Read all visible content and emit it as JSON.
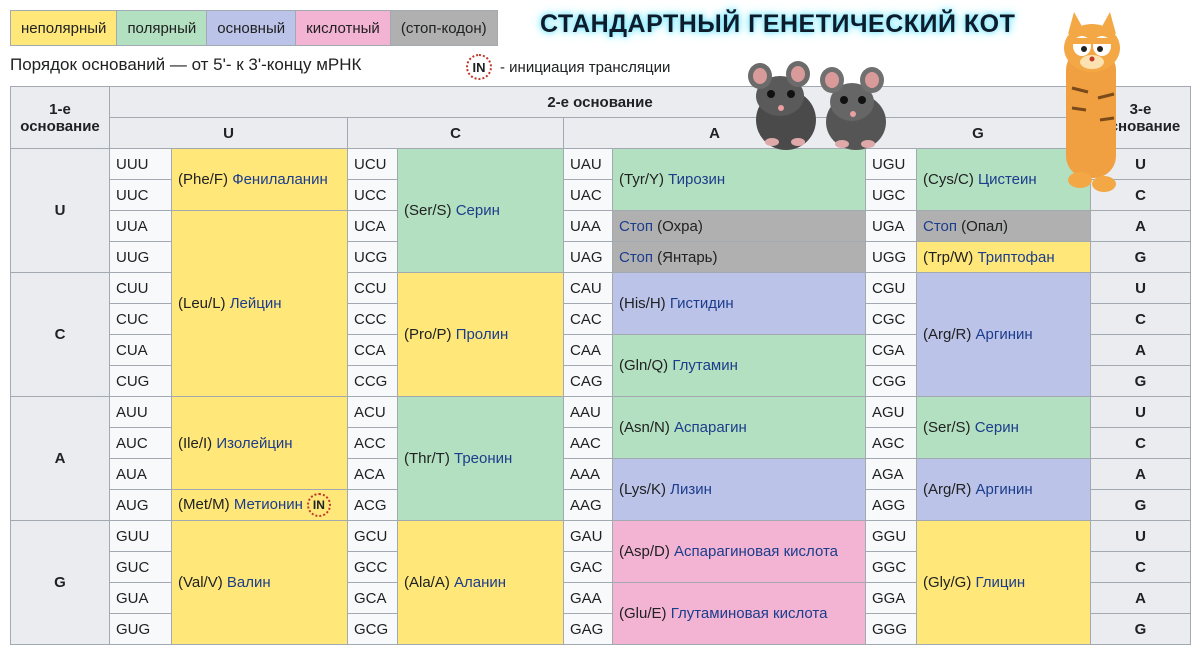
{
  "legend": {
    "items": [
      {
        "label": "неполярный",
        "color": "#ffe77a"
      },
      {
        "label": "полярный",
        "color": "#b3e0c0"
      },
      {
        "label": "основный",
        "color": "#bcc3e8"
      },
      {
        "label": "кислотный",
        "color": "#f3b4d3"
      },
      {
        "label": "(стоп-кодон)",
        "color": "#b0b0b0"
      }
    ]
  },
  "title": "СТАНДАРТНЫЙ ГЕНЕТИЧЕСКИЙ КОТ",
  "subtitle": "Порядок оснований — от 5'- к 3'-концу мРНК",
  "initiation": {
    "mark": "IN",
    "text": "- инициация трансляции"
  },
  "headers": {
    "first_base": "1-е основание",
    "second_base": "2-е основание",
    "third_base": "3-е основание",
    "second_letters": [
      "U",
      "C",
      "A",
      "G"
    ]
  },
  "rows": [
    {
      "first": "U",
      "thirds": [
        "U",
        "C",
        "A",
        "G"
      ],
      "codons": [
        [
          "UUU",
          "UCU",
          "UAU",
          "UGU"
        ],
        [
          "UUC",
          "UCC",
          "UAC",
          "UGC"
        ],
        [
          "UUA",
          "UCA",
          "UAA",
          "UGA"
        ],
        [
          "UUG",
          "UCG",
          "UAG",
          "UGG"
        ]
      ]
    },
    {
      "first": "C",
      "thirds": [
        "U",
        "C",
        "A",
        "G"
      ],
      "codons": [
        [
          "CUU",
          "CCU",
          "CAU",
          "CGU"
        ],
        [
          "CUC",
          "CCC",
          "CAC",
          "CGC"
        ],
        [
          "CUA",
          "CCA",
          "CAA",
          "CGA"
        ],
        [
          "CUG",
          "CCG",
          "CAG",
          "CGG"
        ]
      ]
    },
    {
      "first": "A",
      "thirds": [
        "U",
        "C",
        "A",
        "G"
      ],
      "codons": [
        [
          "AUU",
          "ACU",
          "AAU",
          "AGU"
        ],
        [
          "AUC",
          "ACC",
          "AAC",
          "AGC"
        ],
        [
          "AUA",
          "ACA",
          "AAA",
          "AGA"
        ],
        [
          "AUG",
          "ACG",
          "AAG",
          "AGG"
        ]
      ]
    },
    {
      "first": "G",
      "thirds": [
        "U",
        "C",
        "A",
        "G"
      ],
      "codons": [
        [
          "GUU",
          "GCU",
          "GAU",
          "GGU"
        ],
        [
          "GUC",
          "GCC",
          "GAC",
          "GGC"
        ],
        [
          "GUA",
          "GCA",
          "GAA",
          "GGA"
        ],
        [
          "GUG",
          "GCG",
          "GAG",
          "GGG"
        ]
      ]
    }
  ],
  "amino": {
    "phe": {
      "code": "(Phe/F)",
      "name": "Фенилаланин"
    },
    "leu": {
      "code": "(Leu/L)",
      "name": "Лейцин"
    },
    "ile": {
      "code": "(Ile/I)",
      "name": "Изолейцин"
    },
    "met": {
      "code": "(Met/M)",
      "name": "Метионин",
      "mark": "IN"
    },
    "val": {
      "code": "(Val/V)",
      "name": "Валин"
    },
    "ser": {
      "code": "(Ser/S)",
      "name": "Серин"
    },
    "pro": {
      "code": "(Pro/P)",
      "name": "Пролин"
    },
    "thr": {
      "code": "(Thr/T)",
      "name": "Треонин"
    },
    "ala": {
      "code": "(Ala/A)",
      "name": "Аланин"
    },
    "tyr": {
      "code": "(Tyr/Y)",
      "name": "Тирозин"
    },
    "stop_ochre": {
      "word": "Стоп",
      "name": "(Охра)"
    },
    "stop_amber": {
      "word": "Стоп",
      "name": "(Янтарь)"
    },
    "his": {
      "code": "(His/H)",
      "name": "Гистидин"
    },
    "gln": {
      "code": "(Gln/Q)",
      "name": "Глутамин"
    },
    "asn": {
      "code": "(Asn/N)",
      "name": "Аспарагин"
    },
    "lys": {
      "code": "(Lys/K)",
      "name": "Лизин"
    },
    "asp": {
      "code": "(Asp/D)",
      "name": "Аспарагиновая кислота"
    },
    "glu": {
      "code": "(Glu/E)",
      "name": "Глутаминовая кислота"
    },
    "cys": {
      "code": "(Cys/C)",
      "name": "Цистеин"
    },
    "stop_opal": {
      "word": "Стоп",
      "name": "(Опал)"
    },
    "trp": {
      "code": "(Trp/W)",
      "name": "Триптофан"
    },
    "arg1": {
      "code": "(Arg/R)",
      "name": "Аргинин"
    },
    "ser2": {
      "code": "(Ser/S)",
      "name": "Серин"
    },
    "arg2": {
      "code": "(Arg/R)",
      "name": "Аргинин"
    },
    "gly": {
      "code": "(Gly/G)",
      "name": "Глицин"
    }
  },
  "pictures": {
    "mice": "two-mice-image",
    "cat": "cartoon-cat-image"
  }
}
